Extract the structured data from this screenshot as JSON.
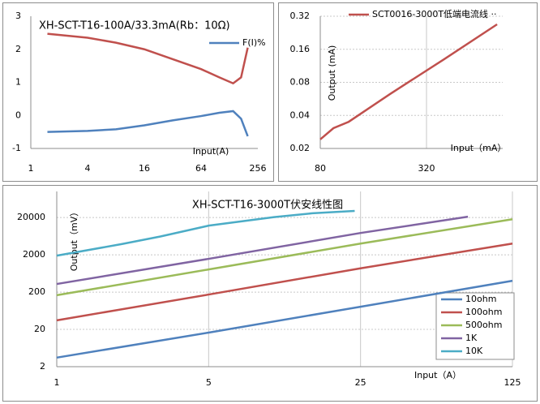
{
  "chart_data": [
    {
      "type": "line",
      "title": "XH-SCT-T16-100A/33.3mA(Rb：10Ω)",
      "x_label": "Input(A)",
      "x_scale": "log",
      "xlim": [
        1,
        256
      ],
      "xticks": [
        1,
        4,
        16,
        64,
        256
      ],
      "ylim": [
        -1,
        3
      ],
      "yticks": [
        -1,
        0,
        1,
        2,
        3
      ],
      "grid": false,
      "legend": "upper right",
      "x": [
        1.5,
        4,
        8,
        16,
        32,
        64,
        100,
        140,
        170,
        200
      ],
      "series": [
        {
          "color": "#c0504d",
          "values": [
            2.47,
            2.35,
            2.2,
            2.0,
            1.7,
            1.4,
            1.15,
            0.97,
            1.15,
            2.05
          ]
        },
        {
          "name": "F(I)%",
          "color": "#4f81bd",
          "values": [
            -0.5,
            -0.47,
            -0.42,
            -0.3,
            -0.15,
            -0.02,
            0.08,
            0.13,
            -0.1,
            -0.63
          ]
        }
      ]
    },
    {
      "type": "line",
      "x_label": "Input（mA）",
      "y_label": "Output (mA)",
      "x_scale": "log",
      "y_scale": "log",
      "xlim": [
        80,
        865
      ],
      "xticks": [
        80,
        320
      ],
      "ylim": [
        0.02,
        0.32
      ],
      "yticks": [
        0.02,
        0.04,
        0.08,
        0.16,
        0.32
      ],
      "grid": true,
      "legend": "upper left",
      "x": [
        80,
        95,
        116,
        200,
        400,
        804
      ],
      "series": [
        {
          "name": "SCT0016-3000T低端电流线 ··",
          "color": "#c0504d",
          "values": [
            0.0242,
            0.0306,
            0.035,
            0.063,
            0.129,
            0.27
          ]
        }
      ]
    },
    {
      "type": "line",
      "title": "XH-SCT-T16-3000T伏安线性图",
      "x_label": "Input（A）",
      "y_label": "Output（mV）",
      "x_scale": "log",
      "y_scale": "log",
      "xlim": [
        1,
        125
      ],
      "xticks": [
        1,
        5,
        25,
        125
      ],
      "ylim": [
        2,
        100000
      ],
      "yticks": [
        2,
        20,
        200,
        2000,
        20000
      ],
      "grid": true,
      "legend": "lower right",
      "series": [
        {
          "name": "10ohm",
          "color": "#4f81bd",
          "x": [
            1,
            5,
            25,
            125
          ],
          "values": [
            3.5,
            16.4,
            81,
            402
          ]
        },
        {
          "name": "100ohm",
          "color": "#c0504d",
          "x": [
            1,
            5,
            25,
            125
          ],
          "values": [
            35,
            172,
            870,
            4000
          ]
        },
        {
          "name": "500ohm",
          "color": "#9bbb59",
          "x": [
            1,
            5,
            25,
            125
          ],
          "values": [
            165,
            810,
            4000,
            18000
          ]
        },
        {
          "name": "1K",
          "color": "#8064a2",
          "x": [
            1,
            5,
            25,
            78
          ],
          "values": [
            330,
            1560,
            7700,
            21000
          ]
        },
        {
          "name": "10K",
          "color": "#4bacc6",
          "x": [
            1,
            2,
            3,
            5,
            10,
            15,
            23.5
          ],
          "values": [
            1900,
            3900,
            6200,
            12100,
            20500,
            26000,
            30000
          ]
        }
      ]
    }
  ]
}
